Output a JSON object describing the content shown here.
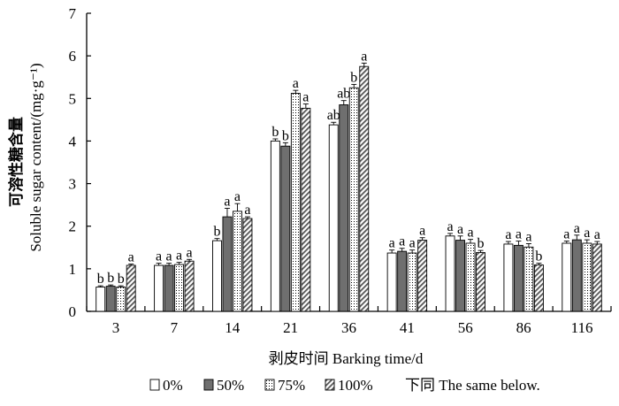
{
  "chart_data": {
    "type": "bar",
    "title": "",
    "xlabel": "剥皮时间 Barking time/d",
    "ylabel_cn": "可溶性糖含量",
    "ylabel_en": "Soluble sugar content/(mg·g⁻¹)",
    "ylim": [
      0,
      7
    ],
    "yticks": [
      "0",
      "1",
      "2",
      "3",
      "4",
      "5",
      "6",
      "7"
    ],
    "categories": [
      "3",
      "7",
      "14",
      "21",
      "36",
      "41",
      "56",
      "86",
      "116"
    ],
    "series": [
      {
        "name": "0%",
        "fill": "#ffffff",
        "pattern": "none",
        "values": [
          0.57,
          1.08,
          1.66,
          4.0,
          4.38,
          1.37,
          1.77,
          1.58,
          1.6
        ],
        "errors": [
          0.03,
          0.05,
          0.05,
          0.05,
          0.06,
          0.07,
          0.06,
          0.06,
          0.05
        ],
        "sig": [
          "b",
          "a",
          "b",
          "b",
          "ab",
          "a",
          "a",
          "a",
          "a"
        ]
      },
      {
        "name": "50%",
        "fill": "#6f6f6f",
        "pattern": "none",
        "values": [
          0.59,
          1.08,
          2.22,
          3.88,
          4.85,
          1.41,
          1.67,
          1.55,
          1.68
        ],
        "errors": [
          0.03,
          0.05,
          0.2,
          0.08,
          0.1,
          0.07,
          0.1,
          0.1,
          0.11
        ],
        "sig": [
          "b",
          "a",
          "a",
          "b",
          "ab",
          "a",
          "a",
          "a",
          "a"
        ]
      },
      {
        "name": "75%",
        "fill": "#ffffff",
        "pattern": "dots",
        "values": [
          0.57,
          1.1,
          2.35,
          5.12,
          5.25,
          1.37,
          1.6,
          1.51,
          1.6
        ],
        "errors": [
          0.03,
          0.05,
          0.18,
          0.07,
          0.08,
          0.07,
          0.09,
          0.08,
          0.08
        ],
        "sig": [
          "b",
          "a",
          "a",
          "a",
          "b",
          "a",
          "a",
          "a",
          "a"
        ]
      },
      {
        "name": "100%",
        "fill": "#ffffff",
        "pattern": "hatch",
        "values": [
          1.08,
          1.18,
          2.18,
          4.77,
          5.75,
          1.67,
          1.38,
          1.09,
          1.58
        ],
        "errors": [
          0.03,
          0.04,
          0.04,
          0.1,
          0.08,
          0.06,
          0.05,
          0.04,
          0.06
        ],
        "sig": [
          "a",
          "a",
          "a",
          "a",
          "a",
          "a",
          "b",
          "b",
          "a"
        ]
      }
    ],
    "legend_position": "bottom",
    "legend_note": "下同 The same below."
  }
}
